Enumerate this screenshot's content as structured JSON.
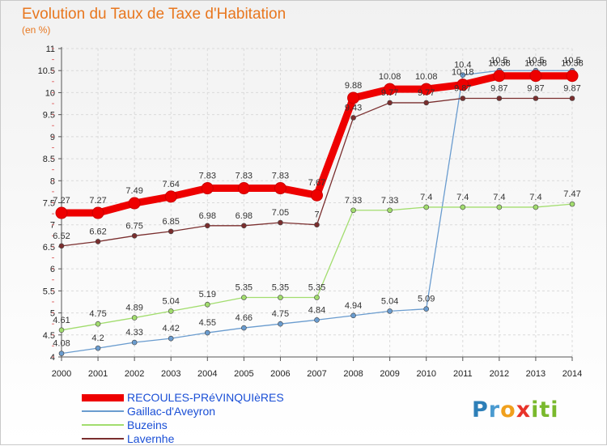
{
  "title": "Evolution du Taux de Taxe d'Habitation",
  "subtitle": "(en %)",
  "logo_text": "Proxiti",
  "chart_data": {
    "type": "line",
    "title": "Evolution du Taux de Taxe d'Habitation",
    "subtitle": "(en %)",
    "xlabel": "",
    "ylabel": "",
    "x": [
      2000,
      2001,
      2002,
      2003,
      2004,
      2005,
      2006,
      2007,
      2008,
      2009,
      2010,
      2011,
      2012,
      2013,
      2014
    ],
    "ylim": [
      4,
      11
    ],
    "yticks": [
      4,
      4.5,
      5,
      5.5,
      6,
      6.5,
      7,
      7.5,
      8,
      8.5,
      9,
      9.5,
      10,
      10.5,
      11
    ],
    "ytick_labels": [
      "4",
      "4.5",
      "5",
      "5.5",
      "6",
      "6.5",
      "7",
      "7.5",
      "8",
      "8.5",
      "9",
      "9.5",
      "10",
      "10.5",
      "11"
    ],
    "grid": true,
    "legend_position": "bottom-left",
    "series": [
      {
        "name": "RECOULES-PRéVINQUIèRES",
        "color": "#ee0000",
        "values": [
          7.27,
          7.27,
          7.49,
          7.64,
          7.83,
          7.83,
          7.83,
          7.67,
          9.88,
          10.08,
          10.08,
          10.18,
          10.38,
          10.38,
          10.38
        ],
        "labels": [
          "7.27",
          "7.27",
          "7.49",
          "7.64",
          "7.83",
          "7.83",
          "7.83",
          "7.67",
          "9.88",
          "10.08",
          "10.08",
          "10.18",
          "10.38",
          "10.38",
          "10.38"
        ]
      },
      {
        "name": "Gaillac-d'Aveyron",
        "color": "#6a9ccf",
        "values": [
          4.08,
          4.2,
          4.33,
          4.42,
          4.55,
          4.66,
          4.75,
          4.84,
          4.94,
          5.04,
          5.09,
          10.4,
          10.5,
          10.5,
          10.5
        ],
        "labels": [
          "4.08",
          "4.2",
          "4.33",
          "4.42",
          "4.55",
          "4.66",
          "4.75",
          "4.84",
          "4.94",
          "5.04",
          "5.09",
          "10.4",
          "10.5",
          "10.5",
          "10.5"
        ]
      },
      {
        "name": "Buzeins",
        "color": "#a2dd6e",
        "values": [
          4.61,
          4.75,
          4.89,
          5.04,
          5.19,
          5.35,
          5.35,
          5.35,
          7.33,
          7.33,
          7.4,
          7.4,
          7.4,
          7.4,
          7.47
        ],
        "labels": [
          "4.61",
          "4.75",
          "4.89",
          "5.04",
          "5.19",
          "5.35",
          "5.35",
          "5.35",
          "7.33",
          "7.33",
          "7.4",
          "7.4",
          "7.4",
          "7.4",
          "7.47"
        ]
      },
      {
        "name": "Lavernhe",
        "color": "#7a2e2e",
        "values": [
          6.52,
          6.62,
          6.75,
          6.85,
          6.98,
          6.98,
          7.05,
          7,
          9.43,
          9.77,
          9.77,
          9.87,
          9.87,
          9.87,
          9.87
        ],
        "labels": [
          "6.52",
          "6.62",
          "6.75",
          "6.85",
          "6.98",
          "6.98",
          "7.05",
          "7",
          "9.43",
          "9.77",
          "9.77",
          "9.87",
          "9.87",
          "9.87",
          "9.87"
        ]
      }
    ]
  }
}
